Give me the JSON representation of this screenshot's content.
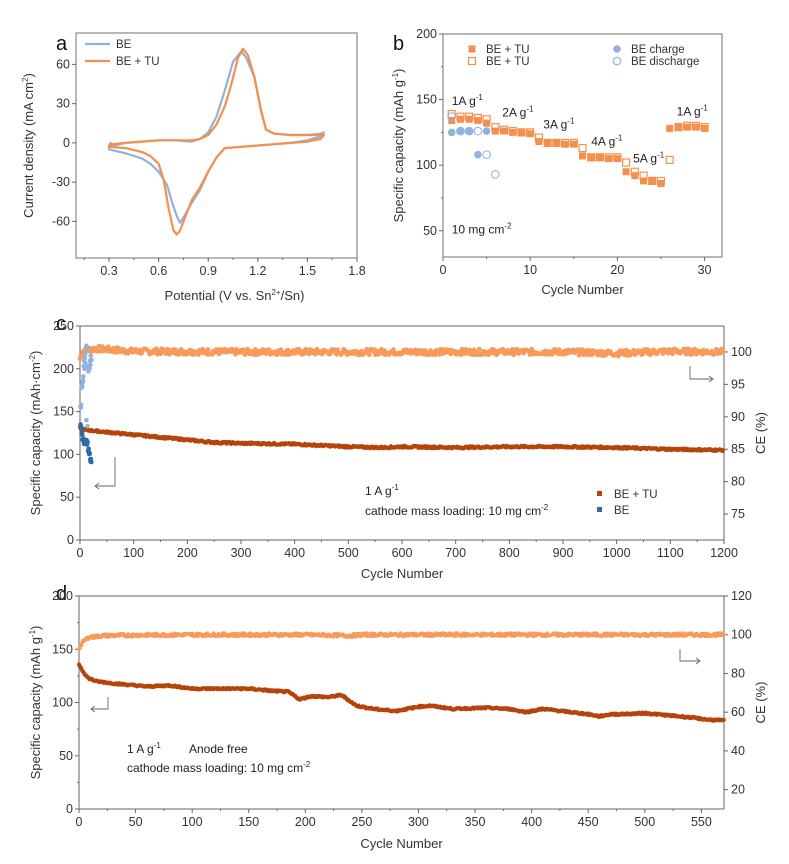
{
  "chart_data": [
    {
      "panel": "a",
      "type": "line",
      "xlabel": "Potential (V vs. Sn",
      "xlabel_sup": "2+",
      "xlabel_tail": "/Sn)",
      "ylabel": "Current density (mA cm",
      "ylabel_sup": "2",
      "ylabel_tail": ")",
      "xlim": [
        0.1,
        1.8
      ],
      "ylim": [
        -88,
        84
      ],
      "xticks": [
        0.3,
        0.6,
        0.9,
        1.2,
        1.5,
        1.8
      ],
      "xtick_labels": [
        "0.3",
        "0.6",
        "0.9",
        "1.2",
        "1.5",
        "1.8"
      ],
      "yticks": [
        -60,
        -30,
        0,
        30,
        60
      ],
      "ytick_labels": [
        "-60",
        "-30",
        "0",
        "30",
        "60"
      ],
      "legend_position": "top-left",
      "series": [
        {
          "name": "BE",
          "color": "#8fb3de",
          "x": [
            0.3,
            0.4,
            0.5,
            0.55,
            0.6,
            0.65,
            0.68,
            0.71,
            0.73,
            0.76,
            0.8,
            0.85,
            0.9,
            0.95,
            1.0,
            1.1,
            1.2,
            1.3,
            1.4,
            1.5,
            1.58,
            1.6,
            1.58,
            1.5,
            1.4,
            1.3,
            1.25,
            1.22,
            1.18,
            1.13,
            1.1,
            1.05,
            1.0,
            0.95,
            0.9,
            0.85,
            0.8,
            0.7,
            0.6,
            0.5,
            0.4,
            0.3
          ],
          "y": [
            -5,
            -8,
            -12,
            -16,
            -22,
            -32,
            -45,
            -56,
            -61,
            -55,
            -46,
            -36,
            -22,
            -11,
            -4,
            -3,
            -2,
            -1,
            0,
            2,
            5,
            8,
            7,
            6,
            6,
            7,
            10,
            25,
            50,
            65,
            70,
            62,
            40,
            20,
            8,
            3,
            1,
            2,
            2,
            1,
            0,
            -3
          ]
        },
        {
          "name": "BE + TU",
          "color": "#f4904d",
          "x": [
            0.3,
            0.4,
            0.5,
            0.55,
            0.6,
            0.63,
            0.66,
            0.69,
            0.71,
            0.73,
            0.76,
            0.8,
            0.85,
            0.9,
            0.95,
            1.0,
            1.1,
            1.2,
            1.3,
            1.4,
            1.5,
            1.58,
            1.6,
            1.58,
            1.5,
            1.4,
            1.3,
            1.25,
            1.22,
            1.18,
            1.14,
            1.11,
            1.08,
            1.04,
            1.0,
            0.95,
            0.9,
            0.85,
            0.8,
            0.7,
            0.6,
            0.5,
            0.4,
            0.32,
            0.3,
            0.31
          ],
          "y": [
            -3,
            -4,
            -7,
            -10,
            -16,
            -28,
            -50,
            -67,
            -70,
            -67,
            -57,
            -44,
            -34,
            -22,
            -11,
            -4,
            -3,
            -2,
            -1,
            0,
            1,
            3,
            6,
            6,
            6,
            6,
            7,
            10,
            24,
            50,
            67,
            72,
            65,
            45,
            28,
            14,
            6,
            3,
            2,
            2,
            2,
            1,
            0,
            -1,
            -2,
            0
          ]
        }
      ]
    },
    {
      "panel": "b",
      "type": "scatter",
      "xlabel": "Cycle Number",
      "ylabel": "Specific capacity (mAh g",
      "ylabel_sup": "-1",
      "ylabel_tail": ")",
      "xlim": [
        0,
        32
      ],
      "ylim": [
        30,
        200
      ],
      "xticks": [
        0,
        10,
        20,
        30
      ],
      "xtick_labels": [
        "0",
        "10",
        "20",
        "30"
      ],
      "yticks": [
        50,
        100,
        150,
        200
      ],
      "ytick_labels": [
        "50",
        "100",
        "150",
        "200"
      ],
      "legend_position": "top",
      "annotations": [
        {
          "text": "1A g",
          "sup": "-1",
          "x": 1,
          "y": 146
        },
        {
          "text": "2A g",
          "sup": "-1",
          "x": 6.8,
          "y": 137
        },
        {
          "text": "3A g",
          "sup": "-1",
          "x": 11.5,
          "y": 128
        },
        {
          "text": "4A g",
          "sup": "-1",
          "x": 17,
          "y": 115
        },
        {
          "text": "5A g",
          "sup": "-1",
          "x": 21.8,
          "y": 102
        },
        {
          "text": "1A g",
          "sup": "-1",
          "x": 26.8,
          "y": 138
        },
        {
          "text": "10 mg cm",
          "sup": "-2",
          "x": 1,
          "y": 48
        }
      ],
      "series": [
        {
          "name": "BE + TU",
          "marker": "filled-square",
          "color": "#f4904d",
          "x": [
            1,
            2,
            3,
            4,
            5,
            6,
            7,
            8,
            9,
            10,
            11,
            12,
            13,
            14,
            15,
            16,
            17,
            18,
            19,
            20,
            21,
            22,
            23,
            24,
            25,
            26,
            27,
            28,
            29,
            30
          ],
          "y": [
            134,
            135,
            135,
            134,
            132,
            126,
            126,
            125,
            125,
            124,
            118,
            117,
            117,
            116,
            116,
            107,
            106,
            106,
            105,
            105,
            95,
            92,
            88,
            88,
            86,
            128,
            129,
            129,
            129,
            128
          ]
        },
        {
          "name": "BE + TU",
          "marker": "open-square",
          "color": "#f4904d",
          "x": [
            1,
            2,
            3,
            4,
            5,
            6,
            7,
            8,
            9,
            10,
            11,
            12,
            13,
            14,
            15,
            16,
            17,
            18,
            19,
            20,
            21,
            22,
            23,
            24,
            25,
            26,
            27,
            28,
            29,
            30
          ],
          "y": [
            139,
            137,
            137,
            136,
            135,
            129,
            127,
            126,
            125,
            125,
            121,
            117,
            117,
            117,
            117,
            113,
            106,
            106,
            106,
            106,
            102,
            95,
            92,
            88,
            88,
            104,
            129,
            130,
            130,
            129
          ]
        },
        {
          "name": "BE charge",
          "marker": "filled-circle",
          "color": "#8fb3de",
          "x": [
            1,
            2,
            3,
            4,
            5
          ],
          "y": [
            125,
            126,
            126,
            108,
            126
          ]
        },
        {
          "name": "BE discharge",
          "marker": "open-circle",
          "color": "#8fb3de",
          "x": [
            1,
            2,
            3,
            4,
            5,
            6
          ],
          "y": [
            137,
            126,
            126,
            126,
            108,
            93
          ]
        }
      ]
    },
    {
      "panel": "c",
      "type": "scatter",
      "xlabel": "Cycle Number",
      "ylabel": "Specific capacity (mAh·cm",
      "ylabel_sup": "-2",
      "ylabel_tail": ")",
      "ylabel_right": "CE (%)",
      "xlim": [
        0,
        1200
      ],
      "ylim": [
        0,
        250
      ],
      "ylim_right": [
        71,
        104
      ],
      "xticks": [
        0,
        100,
        200,
        300,
        400,
        500,
        600,
        700,
        800,
        900,
        1000,
        1100,
        1200
      ],
      "xtick_labels": [
        "0",
        "100",
        "200",
        "300",
        "400",
        "500",
        "600",
        "700",
        "800",
        "900",
        "1000",
        "1100",
        "1200"
      ],
      "yticks": [
        0,
        50,
        100,
        150,
        200,
        250
      ],
      "ytick_labels": [
        "0",
        "50",
        "100",
        "150",
        "200",
        "250"
      ],
      "yticks_right": [
        75,
        80,
        85,
        90,
        95,
        100
      ],
      "ytick_labels_right": [
        "75",
        "80",
        "85",
        "90",
        "95",
        "100"
      ],
      "legend_position": "bottom-right",
      "annotations": [
        {
          "text": "1 A g",
          "sup": "-1"
        },
        {
          "text": "cathode mass loading: 10 mg cm",
          "sup": "-2"
        }
      ],
      "series": [
        {
          "name": "BE + TU",
          "axis": "left",
          "color": "#b5450b",
          "x": [
            0,
            5,
            20,
            50,
            100,
            150,
            200,
            250,
            300,
            400,
            500,
            560,
            600,
            700,
            800,
            900,
            1000,
            1100,
            1200
          ],
          "y": [
            131,
            129,
            128,
            126,
            123,
            120,
            117,
            114,
            113,
            112,
            109,
            108,
            109,
            108,
            109,
            109,
            108,
            106,
            105
          ]
        },
        {
          "name": "BE",
          "axis": "left",
          "color": "#2e6aa8",
          "x": [
            1,
            3,
            5,
            7,
            9,
            11,
            13,
            15,
            17,
            19,
            20
          ],
          "y": [
            133,
            125,
            118,
            113,
            114,
            115,
            113,
            105,
            101,
            93,
            90
          ]
        },
        {
          "name": "BE + TU CE",
          "axis": "right",
          "color": "#f79a5a",
          "x": [
            0,
            5,
            30,
            100,
            300,
            500,
            700,
            900,
            1000,
            1100,
            1200
          ],
          "y": [
            99.0,
            100.2,
            100.5,
            100.1,
            100.0,
            100.0,
            100.0,
            100.0,
            99.8,
            100.1,
            100.0
          ]
        },
        {
          "name": "BE CE",
          "axis": "right",
          "color": "#8fb3de",
          "x": [
            1,
            3,
            5,
            7,
            9,
            12,
            15,
            18,
            20
          ],
          "y": [
            92,
            95,
            96,
            98,
            99,
            100.3,
            97,
            98,
            99
          ]
        }
      ],
      "legend": [
        {
          "name": "BE + TU",
          "color": "#b5450b"
        },
        {
          "name": "BE",
          "color": "#2e6aa8"
        }
      ]
    },
    {
      "panel": "d",
      "type": "line",
      "xlabel": "Cycle Number",
      "ylabel": "Specific capacity (mAh g",
      "ylabel_sup": "-1",
      "ylabel_tail": ")",
      "ylabel_right": "CE (%)",
      "xlim": [
        0,
        570
      ],
      "ylim": [
        0,
        200
      ],
      "ylim_right": [
        10,
        120
      ],
      "xticks": [
        0,
        50,
        100,
        150,
        200,
        250,
        300,
        350,
        400,
        450,
        500,
        550
      ],
      "xtick_labels": [
        "0",
        "50",
        "100",
        "150",
        "200",
        "250",
        "300",
        "350",
        "400",
        "450",
        "500",
        "550"
      ],
      "yticks": [
        0,
        50,
        100,
        150,
        200
      ],
      "ytick_labels": [
        "0",
        "50",
        "100",
        "150",
        "200"
      ],
      "yticks_right": [
        20,
        40,
        60,
        80,
        100,
        120
      ],
      "ytick_labels_right": [
        "20",
        "40",
        "60",
        "80",
        "100",
        "120"
      ],
      "annotations": [
        {
          "text": "1 A g",
          "sup": "-1"
        },
        {
          "text": "Anode free",
          "color": "#ff2020"
        },
        {
          "text": "cathode mass loading: 10 mg cm",
          "sup": "-2"
        }
      ],
      "series": [
        {
          "name": "Capacity",
          "axis": "left",
          "color": "#b5450b",
          "x": [
            0,
            3,
            8,
            15,
            30,
            50,
            60,
            80,
            100,
            150,
            170,
            185,
            195,
            205,
            220,
            232,
            245,
            260,
            280,
            300,
            310,
            330,
            360,
            380,
            395,
            410,
            450,
            460,
            470,
            480,
            500,
            520,
            540,
            555,
            570
          ],
          "y": [
            136,
            130,
            123,
            120,
            118,
            116,
            115,
            116,
            113,
            113,
            111,
            110,
            103,
            106,
            105,
            107,
            97,
            94,
            92,
            96,
            97,
            94,
            95,
            94,
            91,
            94,
            89,
            87,
            89,
            89,
            90,
            88,
            86,
            84,
            83
          ]
        },
        {
          "name": "CE",
          "axis": "right",
          "color": "#f79a5a",
          "x": [
            0,
            3,
            8,
            20,
            50,
            100,
            200,
            240,
            250,
            300,
            400,
            500,
            570
          ],
          "y": [
            93,
            96,
            98.5,
            99.5,
            99.8,
            100,
            100,
            99.5,
            100,
            100,
            100,
            100,
            100
          ]
        }
      ]
    }
  ],
  "panels": {
    "a": {
      "letter": "a",
      "legend": [
        "BE",
        "BE + TU"
      ]
    },
    "b": {
      "letter": "b"
    },
    "c": {
      "letter": "c"
    },
    "d": {
      "letter": "d"
    }
  }
}
